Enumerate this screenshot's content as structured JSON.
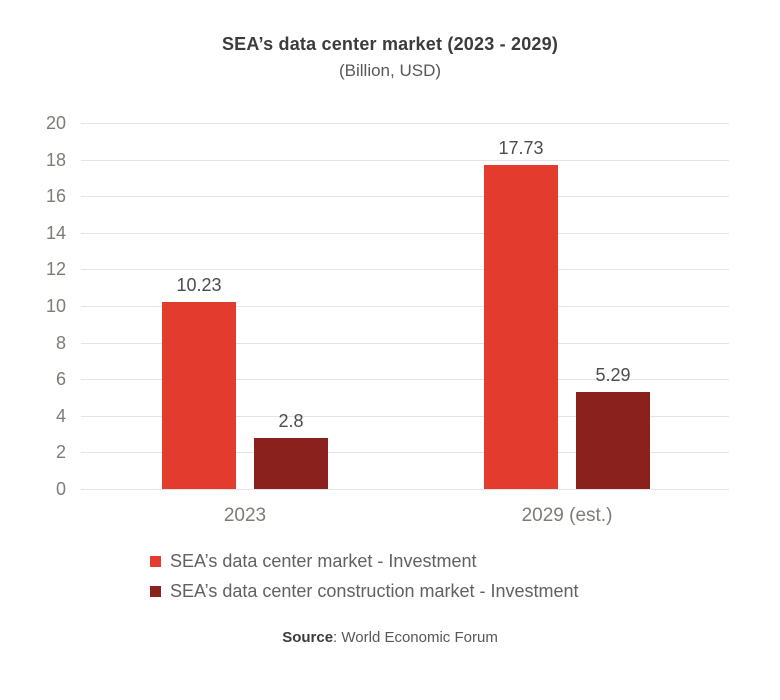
{
  "chart": {
    "title": "SEA’s data center market (2023 - 2029)",
    "subtitle": "(Billion, USD)"
  },
  "chart_data": {
    "type": "bar",
    "title": "SEA’s data center market (2023 - 2029)",
    "subtitle": "(Billion, USD)",
    "categories": [
      "2023",
      "2029 (est.)"
    ],
    "series": [
      {
        "name": "SEA’s data center market - Investment",
        "color": "#e43b2f",
        "values": [
          10.23,
          17.73
        ]
      },
      {
        "name": "SEA’s data center construction market - Investment",
        "color": "#8a211c",
        "values": [
          2.8,
          5.29
        ]
      }
    ],
    "xlabel": "",
    "ylabel": "",
    "ylim": [
      0,
      20
    ],
    "y_ticks": [
      0,
      2,
      4,
      6,
      8,
      10,
      12,
      14,
      16,
      18,
      20
    ],
    "grid": "horizontal",
    "legend_position": "bottom-left",
    "gridline_color": "#e5e4e2"
  },
  "source": {
    "label": "Source",
    "text": ": World Economic Forum"
  }
}
